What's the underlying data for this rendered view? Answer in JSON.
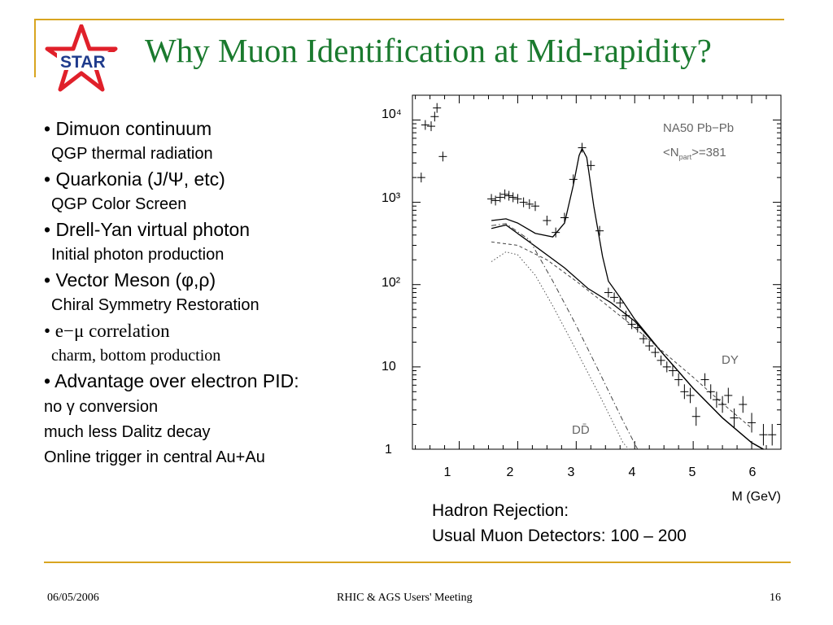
{
  "slide": {
    "title": "Why Muon Identification at Mid-rapidity?",
    "logo_text": "STAR",
    "accent_color": "#d8a520",
    "title_color": "#1a7a2e",
    "logo_color": "#e0202a"
  },
  "bullets": [
    {
      "label": "• Dimuon continuum",
      "sub": "QGP thermal radiation"
    },
    {
      "label": "• Quarkonia (J/Ψ, etc)",
      "sub": "QGP Color Screen"
    },
    {
      "label": "• Drell-Yan virtual photon",
      "sub": "Initial photon production"
    },
    {
      "label": "• Vector Meson (φ,ρ)",
      "sub": "Chiral Symmetry Restoration"
    },
    {
      "label": "• e−μ correlation",
      "sub": "charm, bottom production"
    },
    {
      "label": "• Advantage over electron PID:",
      "subs": [
        "no γ conversion",
        "much less Dalitz decay",
        "Online trigger in central Au+Au"
      ]
    }
  ],
  "caption": {
    "line1": "Hadron Rejection:",
    "line2": "Usual Muon Detectors: 100 – 200"
  },
  "footer": {
    "date": "06/05/2006",
    "meeting": "RHIC & AGS Users' Meeting",
    "page": "16"
  },
  "chart_data": {
    "type": "scatter",
    "xlabel": "M (GeV)",
    "xlim": [
      0.2,
      6.5
    ],
    "ylim": [
      1,
      20000
    ],
    "yscale": "log",
    "xticks": [
      "1",
      "2",
      "3",
      "4",
      "5",
      "6"
    ],
    "yticks": [
      "1",
      "10",
      "10²",
      "10³",
      "10⁴"
    ],
    "annotation_lines": [
      "NA50  Pb−Pb",
      "<N",
      "part",
      ">=381"
    ],
    "curve_labels": [
      "DY",
      "DD̄"
    ],
    "data_points": [
      {
        "x": 0.42,
        "y": 8700
      },
      {
        "x": 0.52,
        "y": 8400
      },
      {
        "x": 0.58,
        "y": 11000
      },
      {
        "x": 0.62,
        "y": 14000
      },
      {
        "x": 0.72,
        "y": 3600
      },
      {
        "x": 0.35,
        "y": 2000
      },
      {
        "x": 1.55,
        "y": 1100
      },
      {
        "x": 1.62,
        "y": 1050
      },
      {
        "x": 1.7,
        "y": 1150
      },
      {
        "x": 1.78,
        "y": 1250
      },
      {
        "x": 1.85,
        "y": 1200
      },
      {
        "x": 1.92,
        "y": 1150
      },
      {
        "x": 2.0,
        "y": 1100
      },
      {
        "x": 2.1,
        "y": 1000
      },
      {
        "x": 2.2,
        "y": 950
      },
      {
        "x": 2.3,
        "y": 900
      },
      {
        "x": 2.5,
        "y": 600
      },
      {
        "x": 2.65,
        "y": 430
      },
      {
        "x": 2.8,
        "y": 650
      },
      {
        "x": 2.95,
        "y": 1900
      },
      {
        "x": 3.1,
        "y": 4600
      },
      {
        "x": 3.25,
        "y": 2800
      },
      {
        "x": 3.4,
        "y": 450
      },
      {
        "x": 3.55,
        "y": 80
      },
      {
        "x": 3.65,
        "y": 70
      },
      {
        "x": 3.75,
        "y": 60
      },
      {
        "x": 3.85,
        "y": 42
      },
      {
        "x": 3.95,
        "y": 33
      },
      {
        "x": 4.05,
        "y": 30
      },
      {
        "x": 4.15,
        "y": 22
      },
      {
        "x": 4.25,
        "y": 18
      },
      {
        "x": 4.35,
        "y": 15
      },
      {
        "x": 4.45,
        "y": 12
      },
      {
        "x": 4.55,
        "y": 10
      },
      {
        "x": 4.65,
        "y": 9
      },
      {
        "x": 4.75,
        "y": 7
      },
      {
        "x": 4.85,
        "y": 5
      },
      {
        "x": 4.95,
        "y": 4.5
      },
      {
        "x": 5.05,
        "y": 2.5
      },
      {
        "x": 5.2,
        "y": 7
      },
      {
        "x": 5.3,
        "y": 5
      },
      {
        "x": 5.4,
        "y": 4
      },
      {
        "x": 5.5,
        "y": 3.5
      },
      {
        "x": 5.6,
        "y": 4.5
      },
      {
        "x": 5.7,
        "y": 2.4
      },
      {
        "x": 5.85,
        "y": 3.5
      },
      {
        "x": 6.0,
        "y": 2.1
      },
      {
        "x": 6.2,
        "y": 1.5
      },
      {
        "x": 6.35,
        "y": 1.5
      }
    ],
    "curves": [
      {
        "name": "total",
        "style": "solid",
        "points": [
          [
            1.55,
            600
          ],
          [
            1.8,
            630
          ],
          [
            2.0,
            560
          ],
          [
            2.3,
            420
          ],
          [
            2.6,
            380
          ],
          [
            2.8,
            560
          ],
          [
            2.95,
            1600
          ],
          [
            3.05,
            3700
          ],
          [
            3.1,
            4500
          ],
          [
            3.18,
            3500
          ],
          [
            3.3,
            900
          ],
          [
            3.45,
            220
          ],
          [
            3.55,
            110
          ],
          [
            3.8,
            62
          ],
          [
            4.0,
            38
          ],
          [
            4.5,
            14
          ],
          [
            5.0,
            5.5
          ],
          [
            5.5,
            2.4
          ],
          [
            6.0,
            1.2
          ],
          [
            6.2,
            0.98
          ]
        ]
      },
      {
        "name": "DY",
        "style": "solid",
        "points": [
          [
            1.55,
            480
          ],
          [
            1.8,
            530
          ],
          [
            2.2,
            330
          ],
          [
            2.8,
            160
          ],
          [
            3.2,
            90
          ],
          [
            3.6,
            60
          ],
          [
            4.0,
            36
          ],
          [
            4.5,
            14
          ],
          [
            5.0,
            5.5
          ],
          [
            5.5,
            2.4
          ],
          [
            6.0,
            1.2
          ],
          [
            6.2,
            0.98
          ]
        ]
      },
      {
        "name": "dashed",
        "style": "dashed",
        "points": [
          [
            1.55,
            330
          ],
          [
            2.0,
            300
          ],
          [
            2.5,
            200
          ],
          [
            3.0,
            110
          ],
          [
            3.5,
            58
          ],
          [
            4.0,
            30
          ],
          [
            4.5,
            15
          ],
          [
            5.0,
            7.5
          ],
          [
            5.5,
            3.6
          ],
          [
            6.0,
            1.8
          ]
        ]
      },
      {
        "name": "DD",
        "style": "dotted",
        "points": [
          [
            1.55,
            190
          ],
          [
            1.8,
            250
          ],
          [
            2.0,
            230
          ],
          [
            2.3,
            130
          ],
          [
            2.6,
            55
          ],
          [
            3.0,
            16
          ],
          [
            3.4,
            4.5
          ],
          [
            3.8,
            1.2
          ],
          [
            3.9,
            0.95
          ]
        ]
      },
      {
        "name": "dashdot",
        "style": "dashdot",
        "points": [
          [
            1.55,
            520
          ],
          [
            1.8,
            550
          ],
          [
            2.2,
            350
          ],
          [
            2.6,
            110
          ],
          [
            3.0,
            32
          ],
          [
            3.4,
            8.5
          ],
          [
            3.8,
            2.2
          ],
          [
            4.05,
            0.95
          ]
        ]
      }
    ]
  }
}
